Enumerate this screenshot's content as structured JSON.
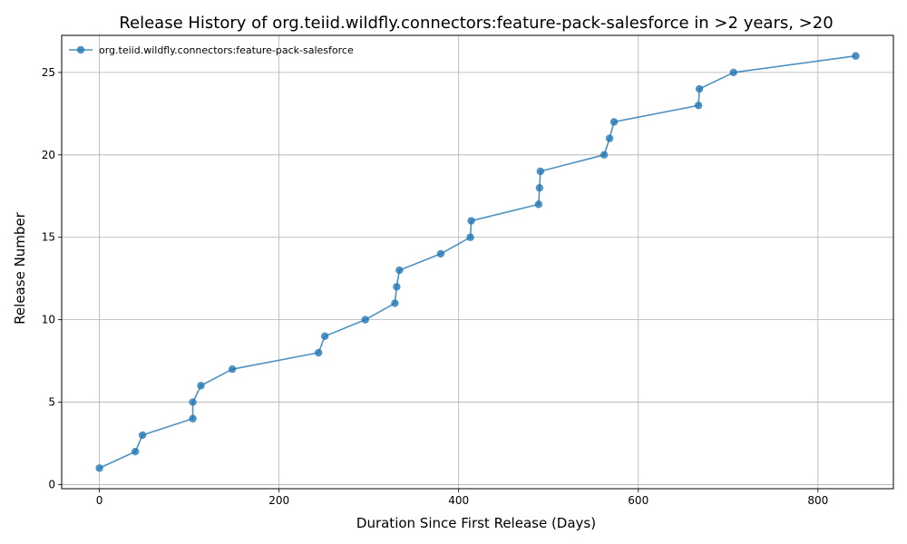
{
  "chart_data": {
    "type": "line",
    "title": "Release History of org.teiid.wildfly.connectors:feature-pack-salesforce in >2 years, >20",
    "xlabel": "Duration Since First Release (Days)",
    "ylabel": "Release Number",
    "xlim": [
      -42,
      884
    ],
    "ylim": [
      -0.25,
      27.25
    ],
    "xticks": [
      0,
      200,
      400,
      600,
      800
    ],
    "yticks": [
      0,
      5,
      10,
      15,
      20,
      25
    ],
    "grid": true,
    "legend_position": "top-left",
    "series": [
      {
        "name": "org.teiid.wildfly.connectors:feature-pack-salesforce",
        "color": "#1f77b4",
        "marker": "circle",
        "x": [
          0,
          40,
          48,
          104,
          104,
          113,
          148,
          244,
          251,
          296,
          329,
          331,
          334,
          380,
          413,
          414,
          489,
          490,
          491,
          562,
          568,
          573,
          667,
          668,
          706,
          842
        ],
        "y": [
          1,
          2,
          3,
          4,
          5,
          6,
          7,
          8,
          9,
          10,
          11,
          12,
          13,
          14,
          15,
          16,
          17,
          18,
          19,
          20,
          21,
          22,
          23,
          24,
          25,
          26
        ]
      }
    ]
  }
}
